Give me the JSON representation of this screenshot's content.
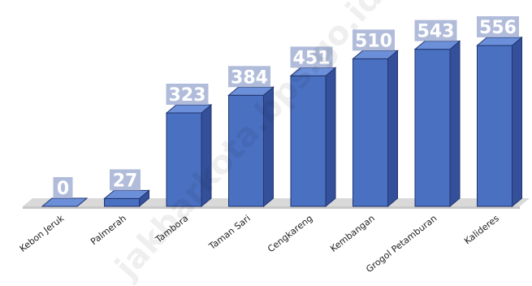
{
  "watermark": "jakbarkota.bps.go.id",
  "colors": {
    "bar_front": "#4a70c1",
    "bar_side": "#34509a",
    "bar_top": "#6b8fd8",
    "bar_edge": "#22356f",
    "label_box": "#a9b5d6",
    "floor": "#d9d9d9"
  },
  "chart_data": {
    "type": "bar",
    "categories": [
      "Kebon Jeruk",
      "Palmerah",
      "Tambora",
      "Taman Sari",
      "Cengkareng",
      "Kembangan",
      "Grogol Petamburan",
      "Kalideres"
    ],
    "values": [
      0,
      27,
      323,
      384,
      451,
      510,
      543,
      556
    ],
    "value_labels": [
      "0",
      "27",
      "323",
      "384",
      "451",
      "510",
      "543",
      "556"
    ],
    "ylim": [
      0,
      556
    ],
    "grid": false,
    "legend": "none",
    "style": "3d-column"
  }
}
